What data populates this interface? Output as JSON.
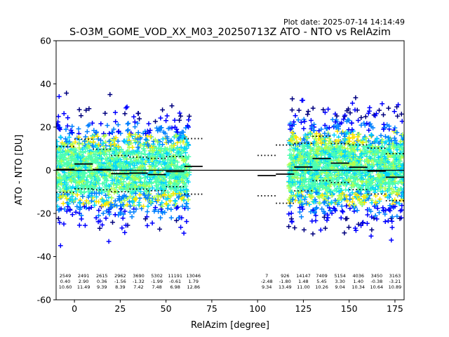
{
  "header": {
    "plot_date": "Plot date: 2025-07-14 14:14:49",
    "title": "S-O3M_GOME_VOD_XX_M03_20250713Z ATO - NTO vs RelAzim"
  },
  "chart_data": {
    "type": "scatter",
    "title": "S-O3M_GOME_VOD_XX_M03_20250713Z ATO - NTO vs RelAzim",
    "xlabel": "RelAzim [degree]",
    "ylabel": "ATO - NTO [DU]",
    "xlim": [
      -10,
      180
    ],
    "ylim": [
      -60,
      60
    ],
    "xticks": [
      0,
      25,
      50,
      75,
      100,
      125,
      150,
      175
    ],
    "yticks": [
      -60,
      -40,
      -20,
      0,
      20,
      40,
      60
    ],
    "zero_line": 0,
    "marker": "+",
    "colormap": [
      "#00007f",
      "#0000ff",
      "#0080ff",
      "#00d4ff",
      "#4effb0",
      "#b0ff4e",
      "#ffe600",
      "#ff8000"
    ],
    "clusters": [
      {
        "x_range": [
          -10,
          63
        ],
        "y_center": 0,
        "spread_sd": 10.5
      },
      {
        "x_range": [
          117,
          180
        ],
        "y_center": 1,
        "spread_sd": 10.8
      }
    ],
    "bins": [
      {
        "x_start": -10,
        "x_end": 0,
        "count": "2549",
        "mean": "0.40",
        "std": "10.60"
      },
      {
        "x_start": 0,
        "x_end": 10,
        "count": "2491",
        "mean": "2.90",
        "std": "11.49"
      },
      {
        "x_start": 10,
        "x_end": 20,
        "count": "2615",
        "mean": "0.36",
        "std": "9.39"
      },
      {
        "x_start": 20,
        "x_end": 30,
        "count": "2962",
        "mean": "-1.56",
        "std": "8.39"
      },
      {
        "x_start": 30,
        "x_end": 40,
        "count": "3690",
        "mean": "-1.32",
        "std": "7.42"
      },
      {
        "x_start": 40,
        "x_end": 50,
        "count": "5302",
        "mean": "-1.99",
        "std": "7.48"
      },
      {
        "x_start": 50,
        "x_end": 60,
        "count": "11191",
        "mean": "-0.61",
        "std": "6.98"
      },
      {
        "x_start": 60,
        "x_end": 70,
        "count": "13046",
        "mean": "1.79",
        "std": "12.86"
      },
      {
        "x_start": 100,
        "x_end": 110,
        "count": "7",
        "mean": "-2.48",
        "std": "9.34"
      },
      {
        "x_start": 110,
        "x_end": 120,
        "count": "926",
        "mean": "-1.80",
        "std": "13.49"
      },
      {
        "x_start": 120,
        "x_end": 130,
        "count": "14147",
        "mean": "1.48",
        "std": "11.00"
      },
      {
        "x_start": 130,
        "x_end": 140,
        "count": "7409",
        "mean": "5.45",
        "std": "10.26"
      },
      {
        "x_start": 140,
        "x_end": 150,
        "count": "5154",
        "mean": "3.30",
        "std": "9.04"
      },
      {
        "x_start": 150,
        "x_end": 160,
        "count": "4036",
        "mean": "1.40",
        "std": "10.34"
      },
      {
        "x_start": 160,
        "x_end": 170,
        "count": "3450",
        "mean": "-0.38",
        "std": "10.64"
      },
      {
        "x_start": 170,
        "x_end": 180,
        "count": "3163",
        "mean": "-3.21",
        "std": "10.89"
      }
    ]
  }
}
